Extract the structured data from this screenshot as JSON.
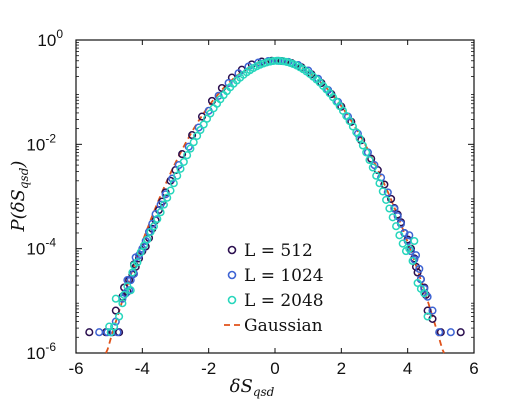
{
  "chart_data": {
    "type": "scatter",
    "xlabel": {
      "base": "δS",
      "sub": "qsd"
    },
    "ylabel": {
      "func": "P(δS",
      "sub": "qsd",
      "close": ")"
    },
    "xlim": [
      -6,
      6
    ],
    "ylim_log10": [
      -6,
      0
    ],
    "y_scale": "log",
    "grid": false,
    "legend_position": "lower-center",
    "x_ticks": [
      "-6",
      "-4",
      "-2",
      "0",
      "2",
      "4",
      "6"
    ],
    "y_ticks": [
      {
        "base": "10",
        "exp": "0"
      },
      {
        "base": "10",
        "exp": "-2"
      },
      {
        "base": "10",
        "exp": "-4"
      },
      {
        "base": "10",
        "exp": "-6"
      }
    ],
    "series": [
      {
        "name": "L = 512",
        "marker": "circle-open",
        "color": "#2b0f4f",
        "x": [
          -5.6,
          -5.1,
          -4.9,
          -4.8,
          -4.7,
          -4.6,
          -4.55,
          -4.45,
          -4.4,
          -4.3,
          -4.25,
          -4.2,
          -4.1,
          -4.0,
          -3.9,
          -3.8,
          -3.7,
          -3.6,
          -3.5,
          -3.4,
          -3.3,
          -3.15,
          -3.0,
          -2.8,
          -2.5,
          -2.2,
          -1.9,
          -1.6,
          -1.3,
          -1.0,
          -0.7,
          -0.4,
          -0.1,
          0.2,
          0.5,
          0.8,
          1.1,
          1.4,
          1.7,
          2.0,
          2.3,
          2.6,
          2.9,
          3.1,
          3.3,
          3.5,
          3.6,
          3.7,
          3.8,
          3.9,
          4.0,
          4.1,
          4.2,
          4.25,
          4.3,
          4.4,
          4.5,
          4.55,
          4.6,
          4.75,
          5.0,
          5.6
        ],
        "y": [
          2.5e-06,
          2.5e-06,
          2.5e-06,
          6.5e-06,
          2.5e-06,
          1.2e-05,
          1.8e-05,
          1.5e-05,
          2.5e-05,
          3.2e-05,
          5e-05,
          4.5e-05,
          6.5e-05,
          9e-05,
          0.00011,
          0.00016,
          0.00024,
          0.00035,
          0.00055,
          0.0008,
          0.0012,
          0.002,
          0.0032,
          0.0065,
          0.015,
          0.034,
          0.068,
          0.12,
          0.19,
          0.27,
          0.34,
          0.385,
          0.4,
          0.395,
          0.36,
          0.3,
          0.22,
          0.15,
          0.092,
          0.053,
          0.027,
          0.012,
          0.0053,
          0.0032,
          0.0017,
          0.0009,
          0.0006,
          0.00045,
          0.00032,
          0.0002,
          0.00015,
          0.0001,
          6.5e-05,
          4.5e-05,
          3.5e-05,
          2.6e-05,
          1.8e-05,
          1.3e-05,
          6.5e-06,
          4.5e-06,
          2.5e-06,
          2.5e-06
        ]
      },
      {
        "name": "L = 1024",
        "marker": "circle-open",
        "color": "#3d63d3",
        "x": [
          -5.3,
          -5.05,
          -4.95,
          -4.8,
          -4.75,
          -4.6,
          -4.5,
          -4.45,
          -4.4,
          -4.35,
          -4.25,
          -4.2,
          -4.1,
          -4.0,
          -3.9,
          -3.8,
          -3.7,
          -3.6,
          -3.45,
          -3.3,
          -3.1,
          -2.9,
          -2.6,
          -2.3,
          -2.0,
          -1.7,
          -1.4,
          -1.1,
          -0.8,
          -0.5,
          -0.2,
          0.1,
          0.4,
          0.7,
          1.0,
          1.3,
          1.6,
          1.9,
          2.2,
          2.5,
          2.8,
          3.0,
          3.2,
          3.4,
          3.6,
          3.7,
          3.8,
          3.9,
          4.0,
          4.05,
          4.1,
          4.2,
          4.25,
          4.35,
          4.4,
          4.5,
          4.6,
          4.75,
          4.95,
          5.3
        ],
        "y": [
          2.5e-06,
          2.5e-06,
          2.5e-06,
          4e-06,
          2.5e-06,
          1.1e-05,
          1.4e-05,
          2.5e-05,
          1.6e-05,
          2.5e-05,
          3.3e-05,
          6.8e-05,
          7.5e-05,
          0.0001,
          0.00014,
          0.00021,
          0.0003,
          0.00046,
          0.0007,
          0.0011,
          0.0022,
          0.004,
          0.009,
          0.021,
          0.044,
          0.085,
          0.15,
          0.23,
          0.31,
          0.37,
          0.395,
          0.4,
          0.38,
          0.33,
          0.26,
          0.18,
          0.11,
          0.065,
          0.034,
          0.016,
          0.007,
          0.004,
          0.0023,
          0.0012,
          0.00058,
          0.00042,
          0.0003,
          0.0002,
          0.00014,
          0.00018,
          9e-05,
          6.2e-05,
          7.5e-05,
          4.1e-05,
          2.6e-05,
          1.7e-05,
          1.2e-05,
          6.5e-06,
          2.5e-06,
          2.5e-06
        ]
      },
      {
        "name": "L = 2048",
        "marker": "circle-open",
        "color": "#27d6bc",
        "x": [
          -5.0,
          -4.95,
          -4.85,
          -4.8,
          -4.7,
          -4.6,
          -4.55,
          -4.45,
          -4.35,
          -4.3,
          -4.25,
          -4.15,
          -4.05,
          -3.95,
          -3.85,
          -3.75,
          -3.65,
          -3.55,
          -3.45,
          -3.35,
          -3.25,
          -3.15,
          -3.05,
          -2.95,
          -2.85,
          -2.75,
          -2.65,
          -2.55,
          -2.45,
          -2.35,
          -2.25,
          -2.15,
          -2.05,
          -1.95,
          -1.85,
          -1.75,
          -1.65,
          -1.55,
          -1.45,
          -1.35,
          -1.25,
          -1.15,
          -1.05,
          -0.95,
          -0.85,
          -0.75,
          -0.65,
          -0.55,
          -0.45,
          -0.35,
          -0.25,
          -0.15,
          -0.05,
          0.05,
          0.15,
          0.25,
          0.35,
          0.45,
          0.55,
          0.65,
          0.75,
          0.85,
          0.95,
          1.05,
          1.15,
          1.25,
          1.35,
          1.45,
          1.55,
          1.65,
          1.75,
          1.85,
          1.95,
          2.05,
          2.15,
          2.25,
          2.35,
          2.45,
          2.55,
          2.65,
          2.75,
          2.85,
          2.95,
          3.05,
          3.15,
          3.25,
          3.35,
          3.45,
          3.55,
          3.65,
          3.75,
          3.85,
          3.95,
          4.05,
          4.15,
          4.2,
          4.3,
          4.4,
          4.5,
          4.6
        ],
        "y": [
          3.2e-06,
          2.5e-06,
          3.2e-06,
          1.1e-05,
          5e-06,
          9e-06,
          1.3e-05,
          1.9e-05,
          1.6e-05,
          3.5e-05,
          4.8e-05,
          5.5e-05,
          8.5e-05,
          0.000115,
          0.00015,
          0.00021,
          0.00027,
          0.00037,
          0.0005,
          0.0007,
          0.00095,
          0.0013,
          0.0018,
          0.0025,
          0.0034,
          0.0046,
          0.0062,
          0.0083,
          0.011,
          0.0145,
          0.0188,
          0.024,
          0.031,
          0.039,
          0.049,
          0.06,
          0.073,
          0.088,
          0.105,
          0.124,
          0.145,
          0.167,
          0.19,
          0.215,
          0.24,
          0.265,
          0.29,
          0.314,
          0.336,
          0.355,
          0.372,
          0.385,
          0.395,
          0.399,
          0.398,
          0.392,
          0.381,
          0.366,
          0.347,
          0.324,
          0.3,
          0.275,
          0.249,
          0.224,
          0.199,
          0.175,
          0.153,
          0.132,
          0.113,
          0.095,
          0.08,
          0.066,
          0.054,
          0.044,
          0.035,
          0.028,
          0.022,
          0.017,
          0.013,
          0.0095,
          0.007,
          0.005,
          0.0036,
          0.0025,
          0.0018,
          0.00125,
          0.00086,
          0.00059,
          0.0004,
          0.00027,
          0.00018,
          0.000125,
          9e-05,
          0.0001,
          5.8e-05,
          0.00014,
          2.2e-05,
          1.7e-05,
          1.4e-05,
          5e-06
        ]
      }
    ],
    "curves": [
      {
        "name": "Gaussian",
        "style": "dashed",
        "color": "#e0521a",
        "function": "gaussian",
        "mean": 0,
        "sigma": 1,
        "x_range": [
          -5.1,
          5.1
        ]
      }
    ],
    "legend": [
      "L = 512",
      "L = 1024",
      "L = 2048",
      "Gaussian"
    ]
  }
}
